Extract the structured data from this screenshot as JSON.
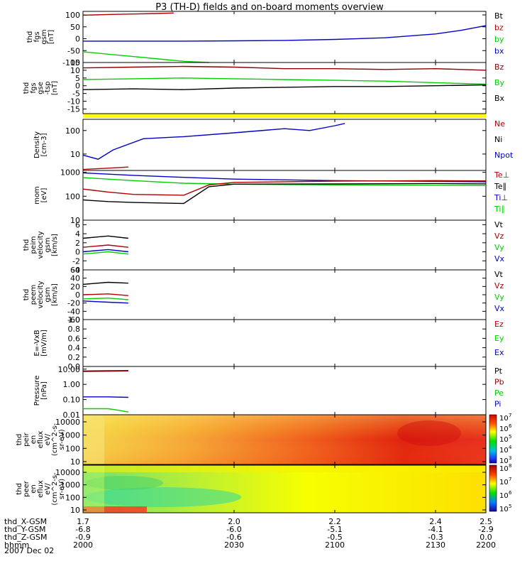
{
  "title": "P3 (TH-D) fields and on-board moments overview",
  "date_label": "2007 Dec 02",
  "colors": {
    "red": "#b00000",
    "dark_red": "#8b0000",
    "green": "#00d000",
    "blue": "#0000c8",
    "black": "#000000",
    "yellow": "#ffff00"
  },
  "chart_data": [
    {
      "id": "p1",
      "type": "line",
      "ylabel": [
        "thd",
        "fgs",
        "gsm",
        "[nT]"
      ],
      "yticks": [
        "100",
        "50",
        "0",
        "-50",
        "-100"
      ],
      "ylim": [
        -100,
        115
      ],
      "legend": [
        {
          "text": "Bt",
          "color": "black"
        },
        {
          "text": "bz",
          "color": "red"
        },
        {
          "text": "by",
          "color": "green"
        },
        {
          "text": "bx",
          "color": "blue"
        }
      ],
      "series": [
        {
          "name": "bz",
          "color": "red",
          "x": [
            1.7,
            1.75,
            1.8,
            1.85,
            1.88
          ],
          "values": [
            99,
            102,
            104,
            106,
            108
          ]
        },
        {
          "name": "by",
          "color": "green",
          "x": [
            1.7,
            1.75,
            1.8,
            1.85,
            1.9,
            1.95
          ],
          "values": [
            -55,
            -65,
            -75,
            -85,
            -95,
            -100
          ]
        },
        {
          "name": "bx",
          "color": "blue",
          "x": [
            1.7,
            1.8,
            1.9,
            2.0,
            2.1,
            2.2,
            2.3,
            2.4,
            2.45,
            2.5
          ],
          "values": [
            -10,
            -10,
            -10,
            -9,
            -7,
            -3,
            4,
            20,
            35,
            55
          ]
        }
      ]
    },
    {
      "id": "p2",
      "type": "line",
      "ylabel": [
        "thd",
        "fgs",
        "gse",
        "-tsp",
        "[nT]"
      ],
      "yticks": [
        "15",
        "10",
        "5",
        "0",
        "-5",
        "-10",
        "-15"
      ],
      "ylim": [
        -18,
        15
      ],
      "legend": [
        {
          "text": "Bz",
          "color": "dark_red"
        },
        {
          "text": "By",
          "color": "green"
        },
        {
          "text": "Bx",
          "color": "black"
        }
      ],
      "series": [
        {
          "name": "Bz",
          "color": "dark_red",
          "x": [
            1.7,
            1.8,
            1.9,
            2.0,
            2.1,
            2.2,
            2.3,
            2.4,
            2.5
          ],
          "values": [
            11.5,
            12,
            12.5,
            12,
            11,
            11,
            10.5,
            11,
            10
          ]
        },
        {
          "name": "By",
          "color": "green",
          "x": [
            1.7,
            1.8,
            1.9,
            2.0,
            2.1,
            2.2,
            2.3,
            2.4,
            2.5
          ],
          "values": [
            4,
            4.5,
            5,
            4.5,
            4,
            3.5,
            3,
            2,
            1
          ]
        },
        {
          "name": "Bx",
          "color": "black",
          "x": [
            1.7,
            1.8,
            1.9,
            2.0,
            2.1,
            2.2,
            2.3,
            2.4,
            2.5
          ],
          "values": [
            -2.5,
            -2,
            -2.5,
            -1.5,
            -1,
            -0.5,
            -0.5,
            0,
            0.5
          ]
        }
      ]
    },
    {
      "id": "p3",
      "type": "line",
      "yscale": "log",
      "ylabel": [
        "Density",
        "[cm-3]"
      ],
      "yticks": [
        "100",
        "10"
      ],
      "ylim": [
        2,
        300
      ],
      "legend": [
        {
          "text": "Ne",
          "color": "red"
        },
        {
          "text": "Ni",
          "color": "black"
        },
        {
          "text": "Npot",
          "color": "blue"
        }
      ],
      "series": [
        {
          "name": "Npot",
          "color": "blue",
          "x": [
            1.7,
            1.73,
            1.76,
            1.82,
            1.9,
            2.0,
            2.1,
            2.15,
            2.2,
            2.22
          ],
          "values": [
            9,
            6,
            15,
            45,
            55,
            80,
            120,
            100,
            160,
            200
          ]
        },
        {
          "name": "Ne",
          "color": "red",
          "x": [
            1.7,
            1.75,
            1.79
          ],
          "values": [
            2.2,
            2.5,
            2.8
          ]
        }
      ]
    },
    {
      "id": "p4",
      "type": "line",
      "yscale": "log",
      "ylabel": [
        "mom",
        "[eV]"
      ],
      "yticks": [
        "1000",
        "100",
        "10"
      ],
      "ylim": [
        10,
        1200
      ],
      "legend": [
        {
          "text": "Te⊥",
          "color": "red"
        },
        {
          "text": "Te∥",
          "color": "black"
        },
        {
          "text": "Ti⊥",
          "color": "blue"
        },
        {
          "text": "Ti∥",
          "color": "green"
        }
      ],
      "series": [
        {
          "name": "Ti⊥",
          "color": "blue",
          "x": [
            1.7,
            1.8,
            1.9,
            2.0,
            2.2,
            2.4,
            2.5
          ],
          "values": [
            950,
            750,
            620,
            520,
            450,
            420,
            400
          ]
        },
        {
          "name": "Ti∥",
          "color": "green",
          "x": [
            1.7,
            1.8,
            1.9,
            2.0,
            2.2,
            2.4,
            2.5
          ],
          "values": [
            600,
            450,
            350,
            320,
            300,
            290,
            280
          ]
        },
        {
          "name": "Te⊥",
          "color": "red",
          "x": [
            1.7,
            1.75,
            1.8,
            1.9,
            1.95,
            2.0,
            2.2,
            2.4,
            2.5
          ],
          "values": [
            200,
            150,
            120,
            110,
            300,
            380,
            430,
            450,
            440
          ]
        },
        {
          "name": "Te∥",
          "color": "black",
          "x": [
            1.7,
            1.75,
            1.8,
            1.9,
            1.95,
            2.0,
            2.2,
            2.4,
            2.5
          ],
          "values": [
            70,
            60,
            55,
            50,
            250,
            320,
            330,
            340,
            330
          ]
        }
      ]
    },
    {
      "id": "p5",
      "type": "line",
      "ylabel": [
        "thd",
        "peim",
        "velocity",
        "gsm",
        "[km/s]"
      ],
      "yticks": [
        "6",
        "4",
        "2",
        "0",
        "-2",
        "-4"
      ],
      "ylim": [
        -4,
        7
      ],
      "legend": [
        {
          "text": "Vt",
          "color": "black"
        },
        {
          "text": "Vz",
          "color": "red"
        },
        {
          "text": "Vy",
          "color": "green"
        },
        {
          "text": "Vx",
          "color": "blue"
        }
      ],
      "series": [
        {
          "name": "Vt",
          "color": "black",
          "x": [
            1.7,
            1.75,
            1.79
          ],
          "values": [
            3,
            3.5,
            3
          ]
        },
        {
          "name": "Vz",
          "color": "red",
          "x": [
            1.7,
            1.75,
            1.79
          ],
          "values": [
            1,
            1.5,
            1
          ]
        },
        {
          "name": "Vy",
          "color": "green",
          "x": [
            1.7,
            1.75,
            1.79
          ],
          "values": [
            -0.5,
            0,
            -0.5
          ]
        },
        {
          "name": "Vx",
          "color": "blue",
          "x": [
            1.7,
            1.75,
            1.79
          ],
          "values": [
            0,
            0.5,
            0
          ]
        }
      ]
    },
    {
      "id": "p6",
      "type": "line",
      "ylabel": [
        "thd",
        "peem",
        "velocity",
        "gsm",
        "[km/s]"
      ],
      "yticks": [
        "60",
        "40",
        "20",
        "0",
        "-20",
        "-40",
        "-60"
      ],
      "ylim": [
        -60,
        60
      ],
      "legend": [
        {
          "text": "Vt",
          "color": "black"
        },
        {
          "text": "Vz",
          "color": "red"
        },
        {
          "text": "Vy",
          "color": "green"
        },
        {
          "text": "Vx",
          "color": "blue"
        }
      ],
      "series": [
        {
          "name": "Vt",
          "color": "black",
          "x": [
            1.7,
            1.75,
            1.79
          ],
          "values": [
            25,
            30,
            28
          ]
        },
        {
          "name": "Vz",
          "color": "red",
          "x": [
            1.7,
            1.75,
            1.79
          ],
          "values": [
            0,
            2,
            -2
          ]
        },
        {
          "name": "Vy",
          "color": "green",
          "x": [
            1.7,
            1.75,
            1.79
          ],
          "values": [
            -10,
            -8,
            -12
          ]
        },
        {
          "name": "Vx",
          "color": "blue",
          "x": [
            1.7,
            1.75,
            1.79
          ],
          "values": [
            -15,
            -18,
            -20
          ]
        }
      ]
    },
    {
      "id": "p7",
      "type": "line",
      "ylabel": [
        "E=-VxB",
        "[mV/m]"
      ],
      "yticks": [
        "1.0",
        "0.8",
        "0.6",
        "0.4",
        "0.2",
        "0.0"
      ],
      "ylim": [
        0,
        1
      ],
      "legend": [
        {
          "text": "Ez",
          "color": "red"
        },
        {
          "text": "Ey",
          "color": "green"
        },
        {
          "text": "Ex",
          "color": "blue"
        }
      ],
      "series": []
    },
    {
      "id": "p8",
      "type": "line",
      "yscale": "log",
      "ylabel": [
        "Pressure",
        "[nPa]"
      ],
      "yticks": [
        "10.00",
        "1.00",
        "0.10",
        "0.01"
      ],
      "ylim": [
        0.01,
        15
      ],
      "legend": [
        {
          "text": "Pt",
          "color": "black"
        },
        {
          "text": "Pb",
          "color": "dark_red"
        },
        {
          "text": "Pe",
          "color": "green"
        },
        {
          "text": "Pi",
          "color": "blue"
        }
      ],
      "series": [
        {
          "name": "Pt",
          "color": "black",
          "x": [
            1.7,
            1.75,
            1.79
          ],
          "values": [
            7.5,
            7.8,
            8
          ]
        },
        {
          "name": "Pb",
          "color": "dark_red",
          "x": [
            1.7,
            1.75,
            1.79
          ],
          "values": [
            7,
            7.3,
            7.6
          ]
        },
        {
          "name": "Pi",
          "color": "blue",
          "x": [
            1.7,
            1.75,
            1.79
          ],
          "values": [
            0.15,
            0.15,
            0.14
          ]
        },
        {
          "name": "Pe",
          "color": "green",
          "x": [
            1.7,
            1.75,
            1.77,
            1.79
          ],
          "values": [
            0.025,
            0.025,
            0.02,
            0.015
          ]
        }
      ]
    },
    {
      "id": "p9",
      "type": "heatmap",
      "ylabel": [
        "thd",
        "peir",
        "en",
        "eflux",
        "eV/",
        "(cm^2-s-",
        "sr-eV)"
      ],
      "yticks": [
        "10000",
        "1000",
        "100",
        "10"
      ],
      "colorbar": {
        "ticks": [
          "10",
          "10",
          "10",
          "10",
          "10"
        ],
        "exps": [
          "7",
          "6",
          "5",
          "4",
          "3"
        ]
      }
    },
    {
      "id": "p10",
      "type": "heatmap",
      "ylabel": [
        "thd",
        "peer",
        "en",
        "eflux",
        "eV/",
        "(cm^2-s-",
        "sr-eV)"
      ],
      "yticks": [
        "10000",
        "1000",
        "100",
        "10"
      ],
      "colorbar": {
        "ticks": [
          "10",
          "10",
          "10",
          "10"
        ],
        "exps": [
          "8",
          "7",
          "6",
          "5"
        ]
      }
    }
  ],
  "xaxis": {
    "rows": [
      {
        "label": "thd_X-GSM",
        "values": [
          "1.7",
          "2.0",
          "2.2",
          "2.4",
          "2.5"
        ]
      },
      {
        "label": "thd_Y-GSM",
        "values": [
          "-6.8",
          "-6.0",
          "-5.1",
          "-4.1",
          "-2.9"
        ]
      },
      {
        "label": "thd_Z-GSM",
        "values": [
          "-0.9",
          "-0.6",
          "-0.5",
          "-0.3",
          "0.0"
        ]
      },
      {
        "label": "hhmm",
        "values": [
          "2000",
          "2030",
          "2100",
          "2130",
          "2200"
        ]
      }
    ]
  }
}
